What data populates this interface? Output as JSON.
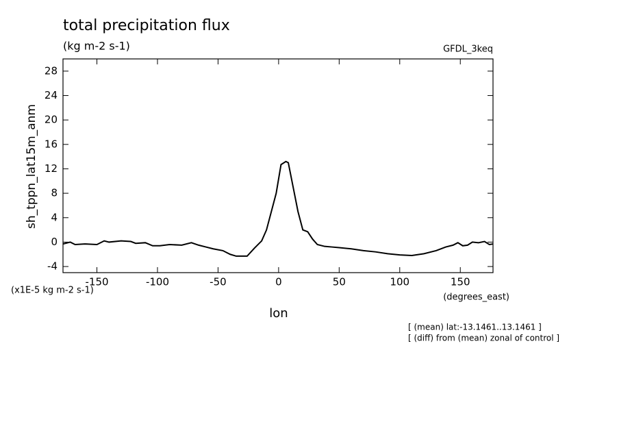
{
  "chart_data": {
    "type": "line",
    "title": "total precipitation flux",
    "subtitle": "(kg m-2 s-1)",
    "dataset": "GFDL_3keq",
    "y_label": "sh_tppn_lat15m_anm",
    "y_units": "(x1E-5 kg m-2 s-1)",
    "x_units": "(degrees_east)",
    "x_label": "lon",
    "annotations": [
      "[ (mean) lat:-13.1461..13.1461 ]",
      "[ (diff) from (mean) zonal of control ]"
    ],
    "x": [
      -178,
      -172,
      -168,
      -160,
      -150,
      -144,
      -140,
      -130,
      -122,
      -118,
      -110,
      -104,
      -98,
      -90,
      -80,
      -72,
      -66,
      -60,
      -54,
      -46,
      -40,
      -35,
      -26,
      -20,
      -14,
      -10,
      -6,
      -2,
      2,
      6,
      8,
      12,
      16,
      20,
      24,
      28,
      32,
      38,
      44,
      50,
      60,
      70,
      80,
      90,
      100,
      110,
      120,
      130,
      138,
      144,
      148,
      152,
      156,
      160,
      165,
      170,
      174,
      177
    ],
    "series": [
      {
        "name": "sh_tppn_lat15m_anm",
        "color": "#000000",
        "values": [
          -0.3,
          0,
          -0.4,
          -0.3,
          -0.4,
          0.2,
          0,
          0.2,
          0.1,
          -0.2,
          -0.1,
          -0.6,
          -0.6,
          -0.4,
          -0.5,
          -0.1,
          -0.5,
          -0.8,
          -1.1,
          -1.4,
          -2.0,
          -2.3,
          -2.3,
          -1.0,
          0.2,
          2,
          5,
          8,
          12.7,
          13.2,
          13,
          9,
          5,
          2,
          1.7,
          0.5,
          -0.4,
          -0.7,
          -0.8,
          -0.9,
          -1.1,
          -1.4,
          -1.6,
          -1.9,
          -2.1,
          -2.2,
          -1.9,
          -1.4,
          -0.8,
          -0.5,
          -0.1,
          -0.6,
          -0.5,
          0,
          -0.1,
          0.1,
          -0.4,
          -0.3
        ]
      }
    ],
    "xlim": [
      -178,
      177
    ],
    "ylim": [
      -5,
      30
    ],
    "xticks": [
      -150,
      -100,
      -50,
      0,
      50,
      100,
      150
    ],
    "yticks": [
      -4,
      0,
      4,
      8,
      12,
      16,
      20,
      24,
      28
    ]
  }
}
